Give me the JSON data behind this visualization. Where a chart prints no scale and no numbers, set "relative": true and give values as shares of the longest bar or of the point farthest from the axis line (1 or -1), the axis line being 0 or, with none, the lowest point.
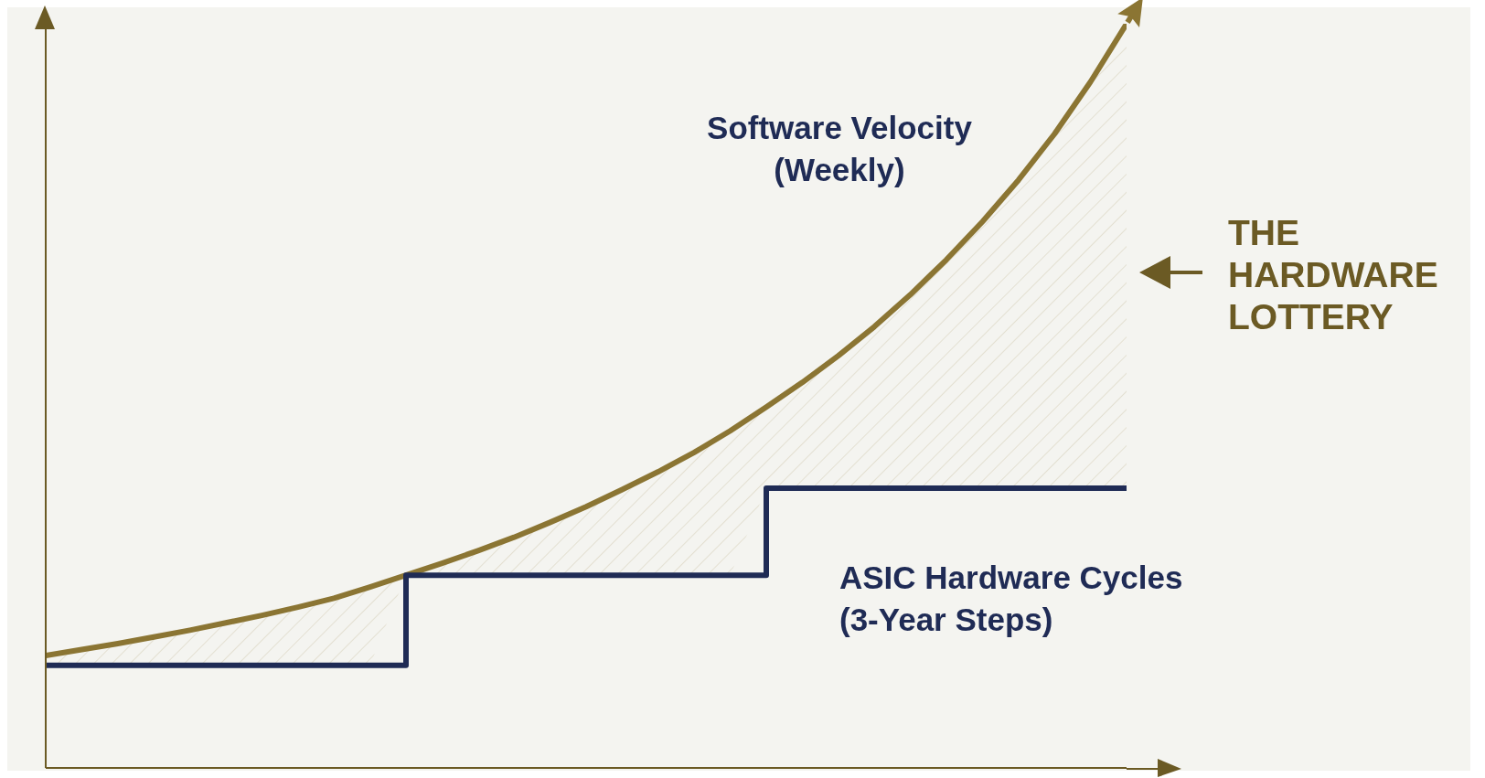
{
  "chart_data": {
    "type": "line",
    "relative": true,
    "grid": false,
    "legend": false,
    "marker": "none",
    "line_style": "solid",
    "categories": [
      null,
      null,
      null,
      null,
      null,
      null,
      null,
      null,
      null,
      null,
      null,
      null,
      null,
      null,
      null,
      null,
      null,
      null,
      null,
      null,
      null,
      null,
      null,
      null,
      null,
      null,
      null,
      null,
      null,
      null,
      null
    ],
    "series": [
      {
        "name": "Software Velocity (Weekly)",
        "color": "#8b7533",
        "values": [
          0.151,
          0.159,
          0.167,
          0.176,
          0.185,
          0.195,
          0.205,
          0.216,
          0.228,
          0.243,
          0.259,
          0.275,
          0.292,
          0.31,
          0.33,
          0.351,
          0.374,
          0.398,
          0.424,
          0.453,
          0.485,
          0.518,
          0.554,
          0.593,
          0.636,
          0.683,
          0.734,
          0.79,
          0.852,
          0.922,
          1.0
        ],
        "lower": [
          0.138,
          0.138,
          0.138,
          0.138,
          0.138,
          0.138,
          0.138,
          0.138,
          0.138,
          0.138,
          0.259,
          0.259,
          0.259,
          0.259,
          0.259,
          0.259,
          0.259,
          0.259,
          0.259,
          0.259,
          0.376,
          0.376,
          0.376,
          0.376,
          0.376,
          0.376,
          0.376,
          0.376,
          0.376,
          0.376,
          0.376
        ],
        "upper": [
          0.151,
          0.159,
          0.167,
          0.176,
          0.185,
          0.195,
          0.205,
          0.216,
          0.228,
          0.243,
          0.259,
          0.275,
          0.292,
          0.31,
          0.33,
          0.351,
          0.374,
          0.398,
          0.424,
          0.453,
          0.485,
          0.518,
          0.554,
          0.593,
          0.636,
          0.683,
          0.734,
          0.79,
          0.852,
          0.922,
          1.0
        ]
      },
      {
        "name": "ASIC Hardware Cycles (3-Year Steps)",
        "type": "step",
        "color": "#1f2b55",
        "values": [
          0.138,
          0.138,
          0.138,
          0.138,
          0.138,
          0.138,
          0.138,
          0.138,
          0.138,
          0.138,
          0.259,
          0.259,
          0.259,
          0.259,
          0.259,
          0.259,
          0.259,
          0.259,
          0.259,
          0.259,
          0.376,
          0.376,
          0.376,
          0.376,
          0.376,
          0.376,
          0.376,
          0.376,
          0.376,
          0.376,
          0.376
        ]
      }
    ],
    "annotations": [
      "THE HARDWARE LOTTERY"
    ]
  }
}
